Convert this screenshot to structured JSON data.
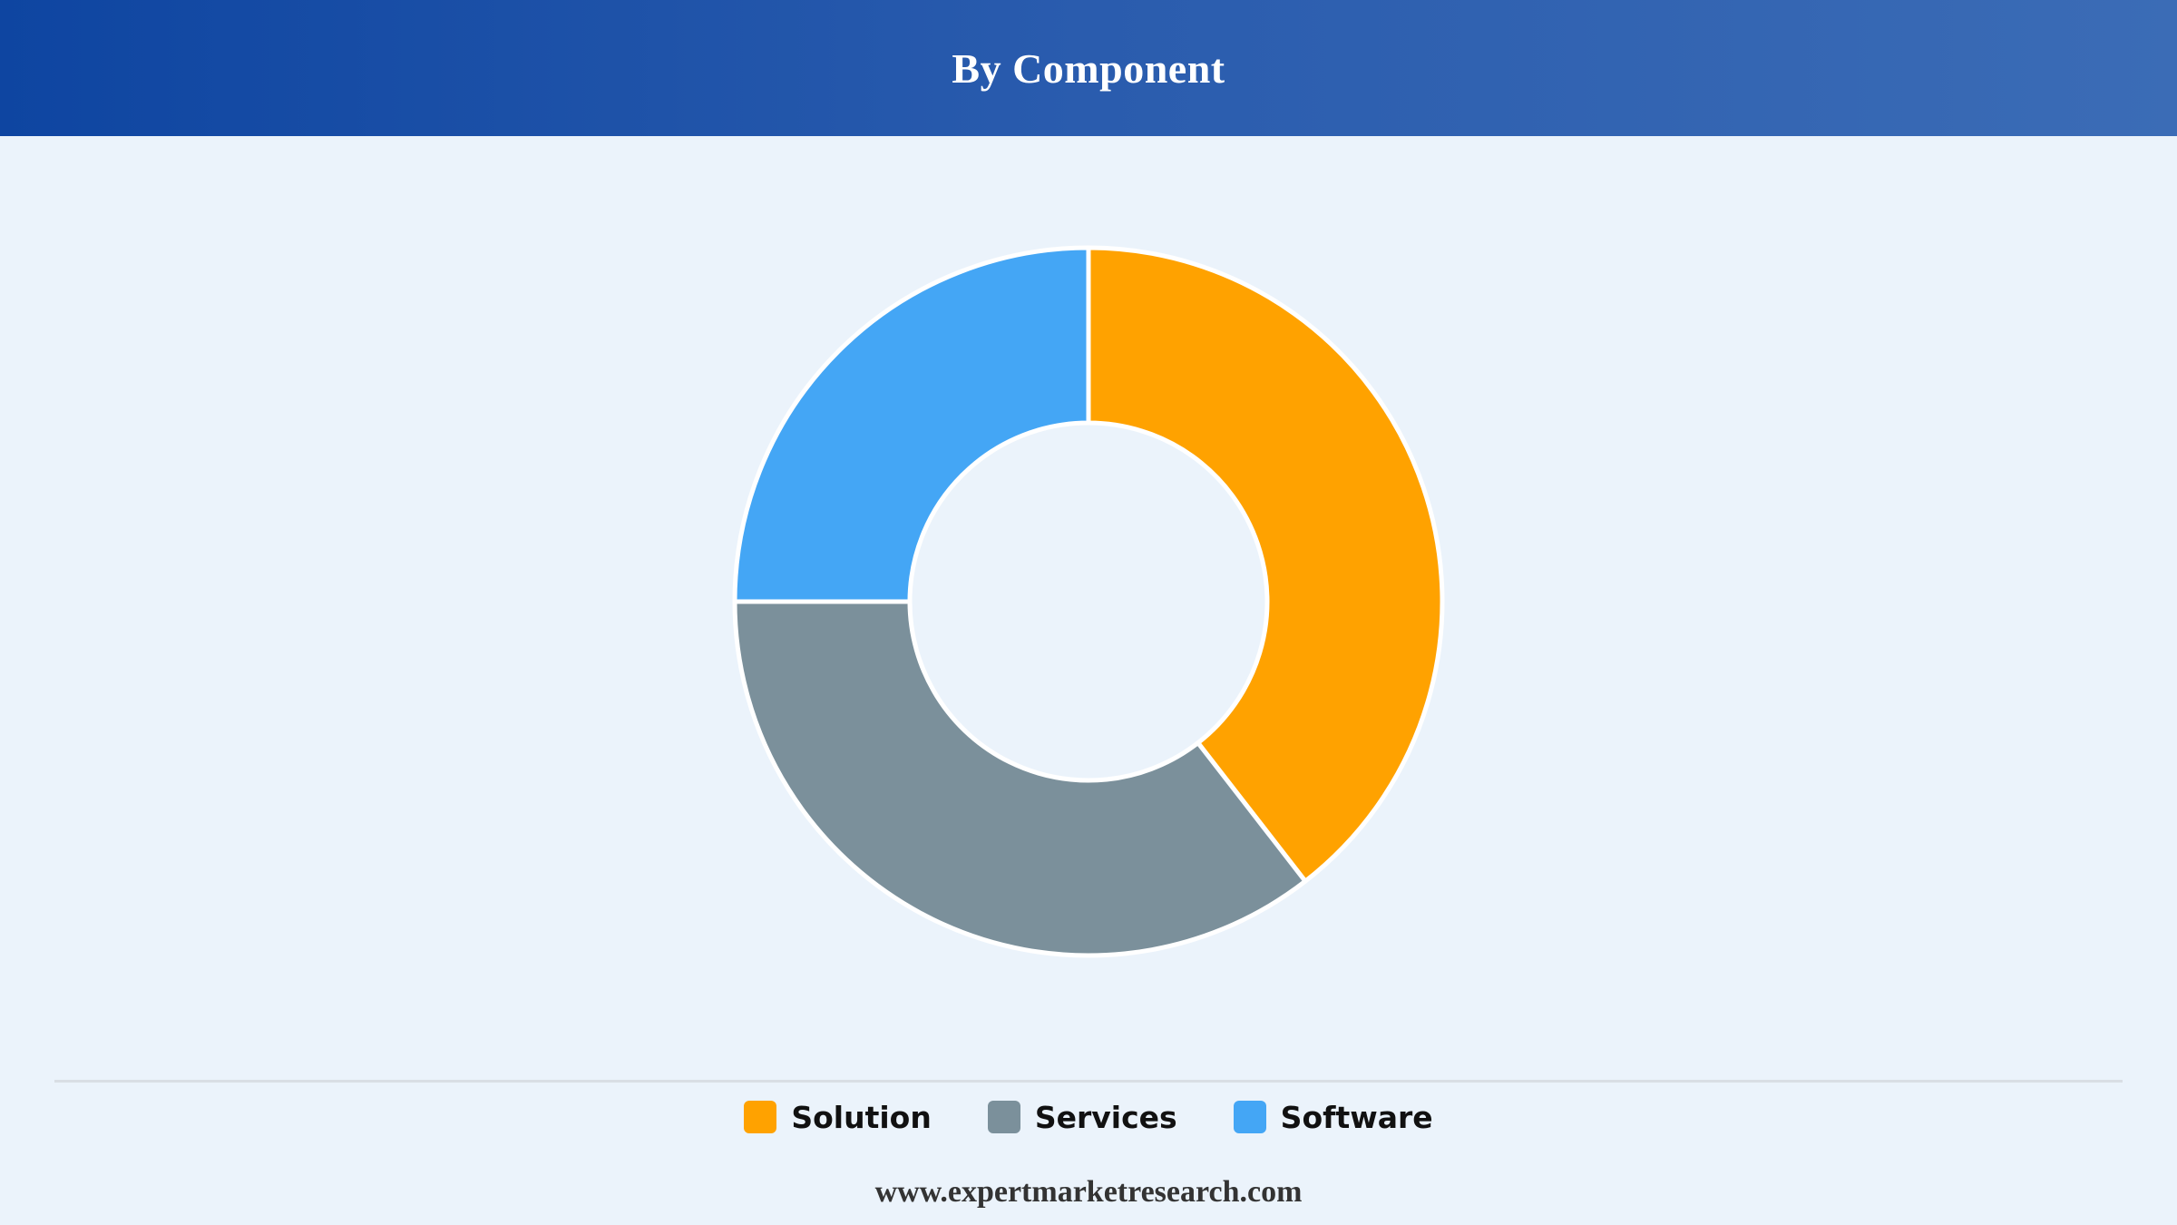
{
  "header": {
    "title": "By Component"
  },
  "chart_data": {
    "type": "pie",
    "donut": true,
    "title": "By Component",
    "categories": [
      "Solution",
      "Services",
      "Software"
    ],
    "values": [
      39.5,
      35.5,
      25.0
    ],
    "colors": [
      "#ffa200",
      "#7b909b",
      "#44a6f5"
    ],
    "start_angle_deg": 0,
    "direction": "clockwise",
    "legend_position": "bottom"
  },
  "legend": {
    "items": [
      {
        "label": "Solution",
        "color": "#ffa200"
      },
      {
        "label": "Services",
        "color": "#7b909b"
      },
      {
        "label": "Software",
        "color": "#44a6f5"
      }
    ]
  },
  "footer": {
    "source": "www.expertmarketresearch.com"
  },
  "colors": {
    "background": "#ebf3fb",
    "header_start": "#0e45a1",
    "header_end": "#3b6cb6"
  }
}
